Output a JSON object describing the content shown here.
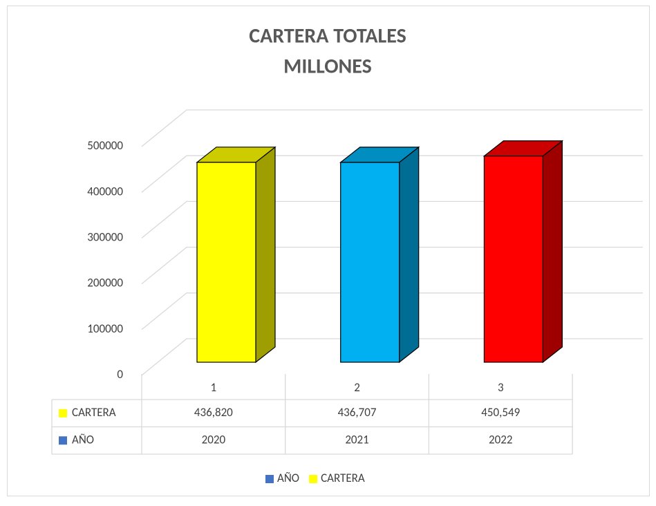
{
  "chart_data": {
    "type": "bar3d",
    "title": "CARTERA TOTALES",
    "subtitle": "MILLONES",
    "categories": [
      "1",
      "2",
      "3"
    ],
    "series": [
      {
        "name": "AÑO",
        "color": "#4472c4",
        "values": [
          2020,
          2021,
          2022
        ]
      },
      {
        "name": "CARTERA",
        "color": "#ffff00",
        "point_colors": [
          "#ffff00",
          "#00b0f0",
          "#ff0000"
        ],
        "values": [
          436820,
          436707,
          450549
        ],
        "value_labels": [
          "436,820",
          "436,707",
          "450,549"
        ]
      }
    ],
    "ylim": [
      0,
      500000
    ],
    "yticks": [
      0,
      100000,
      200000,
      300000,
      400000,
      500000
    ],
    "grid": true,
    "legend": "bottom",
    "data_table": true
  }
}
